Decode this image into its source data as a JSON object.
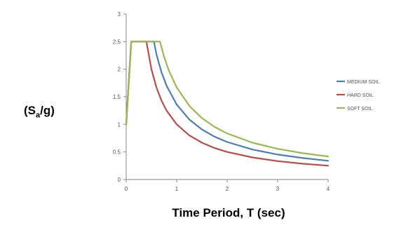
{
  "chart_data": {
    "type": "line",
    "ylabel": {
      "prefix": "(S",
      "sub": "a",
      "suffix": "/g)"
    },
    "xlabel": "Time Period, T (sec)",
    "xlim": [
      0,
      4
    ],
    "ylim": [
      0,
      3
    ],
    "x_ticks": [
      "0",
      "1",
      "2",
      "3",
      "4"
    ],
    "y_ticks": [
      "0",
      "0.5",
      "1",
      "1.5",
      "2",
      "2.5",
      "3"
    ],
    "legend_position": "right",
    "series": [
      {
        "name": "MEDIUM SOIL",
        "color": "#4a7ebb",
        "points": [
          [
            0,
            1
          ],
          [
            0.1,
            2.5
          ],
          [
            0.55,
            2.5
          ],
          [
            0.6,
            2.267
          ],
          [
            0.7,
            1.943
          ],
          [
            0.8,
            1.7
          ],
          [
            1.0,
            1.36
          ],
          [
            1.25,
            1.088
          ],
          [
            1.5,
            0.907
          ],
          [
            1.75,
            0.777
          ],
          [
            2.0,
            0.68
          ],
          [
            2.5,
            0.544
          ],
          [
            3.0,
            0.453
          ],
          [
            3.5,
            0.389
          ],
          [
            4.0,
            0.34
          ]
        ]
      },
      {
        "name": "HARD SOIL",
        "color": "#be4b48",
        "points": [
          [
            0,
            1
          ],
          [
            0.1,
            2.5
          ],
          [
            0.4,
            2.5
          ],
          [
            0.5,
            2.0
          ],
          [
            0.6,
            1.667
          ],
          [
            0.7,
            1.429
          ],
          [
            0.8,
            1.25
          ],
          [
            1.0,
            1.0
          ],
          [
            1.25,
            0.8
          ],
          [
            1.5,
            0.667
          ],
          [
            1.75,
            0.571
          ],
          [
            2.0,
            0.5
          ],
          [
            2.5,
            0.4
          ],
          [
            3.0,
            0.333
          ],
          [
            3.5,
            0.286
          ],
          [
            4.0,
            0.25
          ]
        ]
      },
      {
        "name": "SOFT SOIL",
        "color": "#98b954",
        "points": [
          [
            0,
            1
          ],
          [
            0.1,
            2.5
          ],
          [
            0.67,
            2.5
          ],
          [
            0.75,
            2.227
          ],
          [
            0.85,
            1.965
          ],
          [
            1.0,
            1.67
          ],
          [
            1.25,
            1.336
          ],
          [
            1.5,
            1.113
          ],
          [
            1.75,
            0.954
          ],
          [
            2.0,
            0.835
          ],
          [
            2.5,
            0.668
          ],
          [
            3.0,
            0.557
          ],
          [
            3.5,
            0.477
          ],
          [
            4.0,
            0.418
          ]
        ]
      }
    ]
  }
}
